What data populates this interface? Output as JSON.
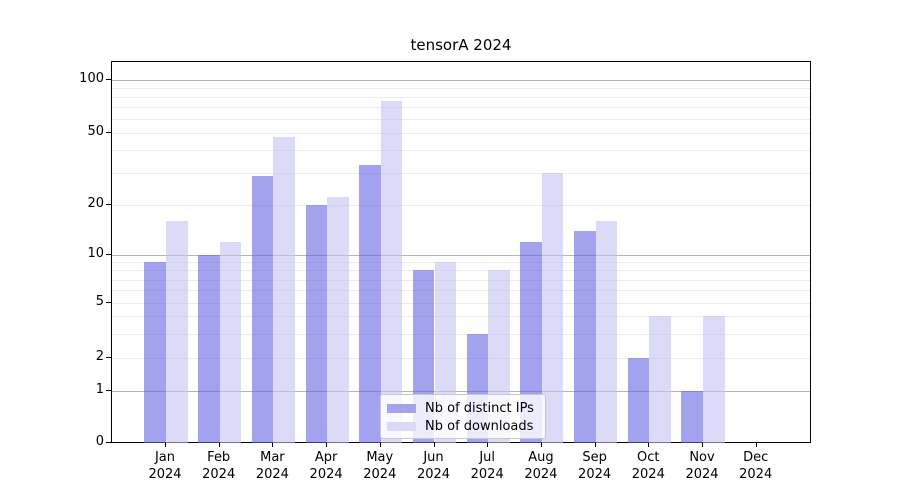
{
  "title": "tensorA 2024",
  "chart_data": {
    "type": "bar",
    "title": "tensorA 2024",
    "categories": [
      "Jan 2024",
      "Feb 2024",
      "Mar 2024",
      "Apr 2024",
      "May 2024",
      "Jun 2024",
      "Jul 2024",
      "Aug 2024",
      "Sep 2024",
      "Oct 2024",
      "Nov 2024",
      "Dec 2024"
    ],
    "series": [
      {
        "name": "Nb of distinct IPs",
        "color": "#a3a3ee",
        "fill": "rgba(100,100,227,0.6)",
        "values": [
          9,
          10,
          29,
          20,
          33,
          8,
          3,
          12,
          14,
          2,
          1,
          0
        ]
      },
      {
        "name": "Nb of downloads",
        "color": "#d9d9f7",
        "fill": "rgba(195,195,243,0.6)",
        "values": [
          16,
          12,
          47,
          22,
          76,
          9,
          8,
          30,
          16,
          4,
          4,
          0
        ]
      }
    ],
    "xlabel": "",
    "ylabel": "",
    "yscale": "symlog (linear 0-1, logarithmic above 1)",
    "yticks": [
      0,
      1,
      2,
      5,
      10,
      20,
      50,
      100
    ],
    "ytick_labels": [
      "0",
      "1",
      "2",
      "5",
      "10",
      "20",
      "50",
      "100"
    ],
    "minor_gridlines": [
      2,
      3,
      4,
      5,
      6,
      7,
      8,
      9,
      20,
      30,
      40,
      50,
      60,
      70,
      80,
      90
    ],
    "major_gridlines": [
      1,
      10,
      100
    ],
    "ylim": [
      0,
      127
    ],
    "grid": "horizontal, major and minor",
    "legend_position": "inside axes, lower center",
    "xtick_second_line": "2024"
  },
  "legend": {
    "items": [
      {
        "label": "Nb of distinct IPs"
      },
      {
        "label": "Nb of downloads"
      }
    ]
  }
}
